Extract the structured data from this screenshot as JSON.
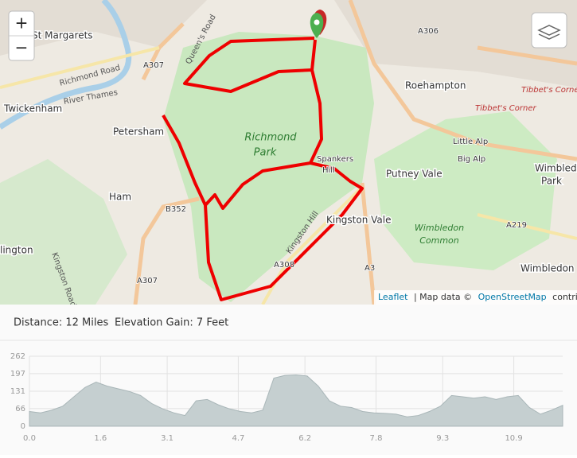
{
  "map": {
    "zoom_in": "+",
    "zoom_out": "−",
    "labels": {
      "st_margarets": "St Margarets",
      "richmond_road": "Richmond Road",
      "twickenham": "Twickenham",
      "river_thames": "River Thames",
      "petersham": "Petersham",
      "a307_top": "A307",
      "a307_bottom": "A307",
      "queens_road": "Queen's Road",
      "richmond_park": [
        "Richmond",
        "Park"
      ],
      "roehampton": "Roehampton",
      "tibbets_corner_1": "Tibbet's Corner",
      "tibbets_corner_2": "Tibbet's Corner",
      "little_alp": "Little Alp",
      "big_alp": "Big Alp",
      "spankers_hill": [
        "Spankers",
        "Hill"
      ],
      "putney_vale": "Putney Vale",
      "wimbledon_park": [
        "Wimbledon",
        "Park"
      ],
      "ham": "Ham",
      "b352": "B352",
      "kingston_vale": "Kingston Vale",
      "a219": "A219",
      "wimbledon_common": [
        "Wimbledon",
        "Common"
      ],
      "a306": "A306",
      "lington": "lington",
      "kingston_road": "Kingston Road",
      "a308": "A308",
      "kingston_hill": "Kingston Hill",
      "a3": "A3",
      "wimbledon": "Wimbledon"
    },
    "attribution": {
      "leaflet": "Leaflet",
      "map_data": "| Map data ©",
      "osm": "OpenStreetMap",
      "contributors": "contributors"
    }
  },
  "stats": {
    "distance": "Distance: 12 Miles",
    "elevation_gain": "Elevation Gain: 7 Feet"
  },
  "chart_data": {
    "type": "area",
    "color": "#c5cfd0",
    "x": [
      0,
      0.25,
      0.5,
      0.75,
      1,
      1.25,
      1.5,
      1.75,
      2,
      2.25,
      2.5,
      2.75,
      3,
      3.25,
      3.5,
      3.75,
      4,
      4.25,
      4.5,
      4.75,
      5,
      5.25,
      5.5,
      5.75,
      6,
      6.25,
      6.5,
      6.75,
      7,
      7.25,
      7.5,
      7.75,
      8,
      8.25,
      8.5,
      8.75,
      9,
      9.25,
      9.5,
      9.75,
      10,
      10.25,
      10.5,
      10.75,
      11,
      11.25,
      11.5,
      11.75,
      12
    ],
    "values": [
      55,
      50,
      60,
      75,
      110,
      145,
      165,
      150,
      140,
      130,
      115,
      85,
      65,
      50,
      40,
      95,
      100,
      80,
      65,
      55,
      50,
      60,
      180,
      190,
      192,
      188,
      150,
      95,
      75,
      70,
      55,
      50,
      48,
      45,
      35,
      40,
      55,
      75,
      115,
      110,
      105,
      110,
      100,
      110,
      115,
      70,
      45,
      60,
      78
    ],
    "xlim": [
      0,
      12
    ],
    "ylim": [
      0,
      262
    ],
    "xticks": [
      {
        "value": 0,
        "label": "0.0"
      },
      1.6,
      3.1,
      4.7,
      6.2,
      7.8,
      9.3,
      10.9
    ],
    "yticks": [
      0,
      66,
      131,
      197,
      262
    ],
    "grid": true
  }
}
